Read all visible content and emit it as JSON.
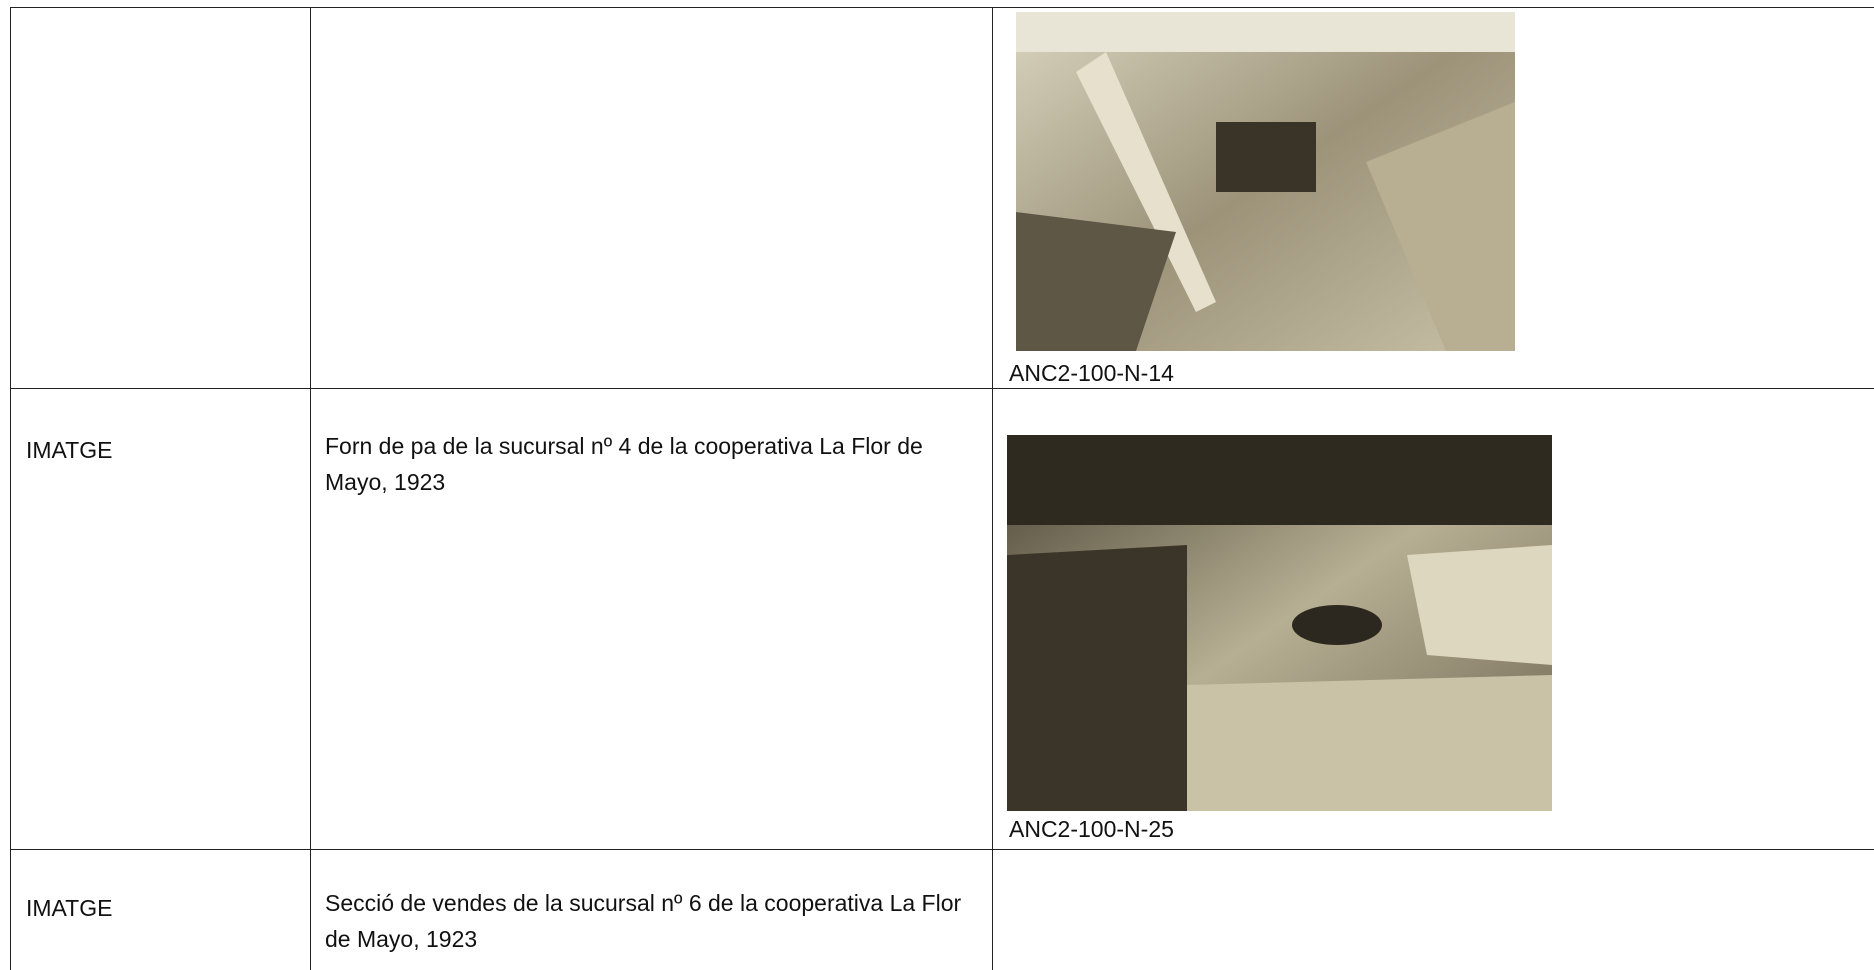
{
  "table": {
    "rows": [
      {
        "caption": "ANC2-100-N-14"
      },
      {
        "label": "IMATGE",
        "description": "Forn de pa de la sucursal nº 4 de la cooperativa La Flor de Mayo, 1923",
        "caption": "ANC2-100-N-25"
      },
      {
        "label": "IMATGE",
        "description": "Secció de vendes de la sucursal nº 6 de la cooperativa La Flor de Mayo, 1923"
      }
    ]
  }
}
